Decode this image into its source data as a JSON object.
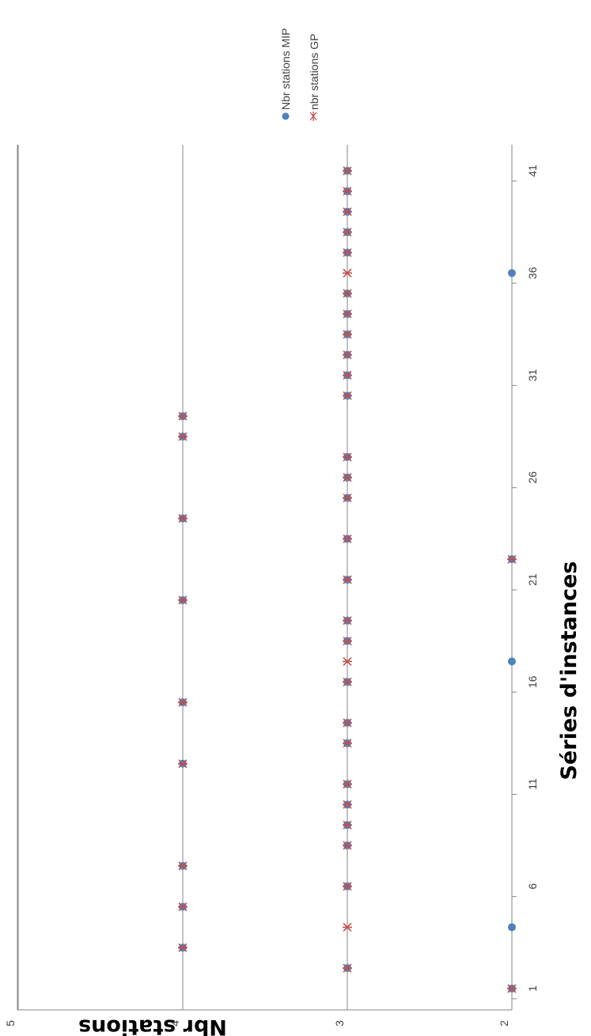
{
  "chart_data": {
    "type": "scatter",
    "orientation": "rotated-90-clockwise",
    "xlabel": "Séries d'instances",
    "ylabel": "Nbr stations",
    "xlim": [
      1,
      41
    ],
    "ylim": [
      2,
      5
    ],
    "x_ticks": [
      "1",
      "6",
      "11",
      "16",
      "21",
      "26",
      "31",
      "36",
      "41"
    ],
    "y_ticks": [
      "2",
      "3",
      "4",
      "5"
    ],
    "grid": true,
    "legend_position": "top-right",
    "colors": {
      "mip": "#4F81BD",
      "gp": "#C0504D",
      "grid": "#868686"
    },
    "series": [
      {
        "name": "Nbr stations MIP",
        "marker": "circle",
        "x": [
          1,
          2,
          3,
          4,
          5,
          6,
          7,
          8,
          9,
          10,
          11,
          12,
          13,
          14,
          15,
          16,
          17,
          18,
          19,
          20,
          21,
          22,
          23,
          24,
          25,
          26,
          27,
          28,
          29,
          30,
          31,
          32,
          33,
          34,
          35,
          36,
          37,
          38,
          39,
          40,
          41
        ],
        "y": [
          2,
          3,
          4,
          2,
          4,
          3,
          4,
          3,
          3,
          3,
          3,
          4,
          3,
          3,
          4,
          3,
          2,
          3,
          3,
          4,
          3,
          2,
          3,
          4,
          3,
          3,
          3,
          4,
          4,
          3,
          3,
          3,
          3,
          3,
          3,
          2,
          3,
          3,
          3,
          3,
          3
        ]
      },
      {
        "name": "nbr stations GP",
        "marker": "asterisk",
        "x": [
          1,
          2,
          3,
          4,
          5,
          6,
          7,
          8,
          9,
          10,
          11,
          12,
          13,
          14,
          15,
          16,
          17,
          18,
          19,
          20,
          21,
          22,
          23,
          24,
          25,
          26,
          27,
          28,
          29,
          30,
          31,
          32,
          33,
          34,
          35,
          36,
          37,
          38,
          39,
          40,
          41
        ],
        "y": [
          2,
          3,
          4,
          3,
          4,
          3,
          4,
          3,
          3,
          3,
          3,
          4,
          3,
          3,
          4,
          3,
          3,
          3,
          3,
          4,
          3,
          2,
          3,
          4,
          3,
          3,
          3,
          4,
          4,
          3,
          3,
          3,
          3,
          3,
          3,
          3,
          3,
          3,
          3,
          3,
          3
        ]
      }
    ]
  }
}
